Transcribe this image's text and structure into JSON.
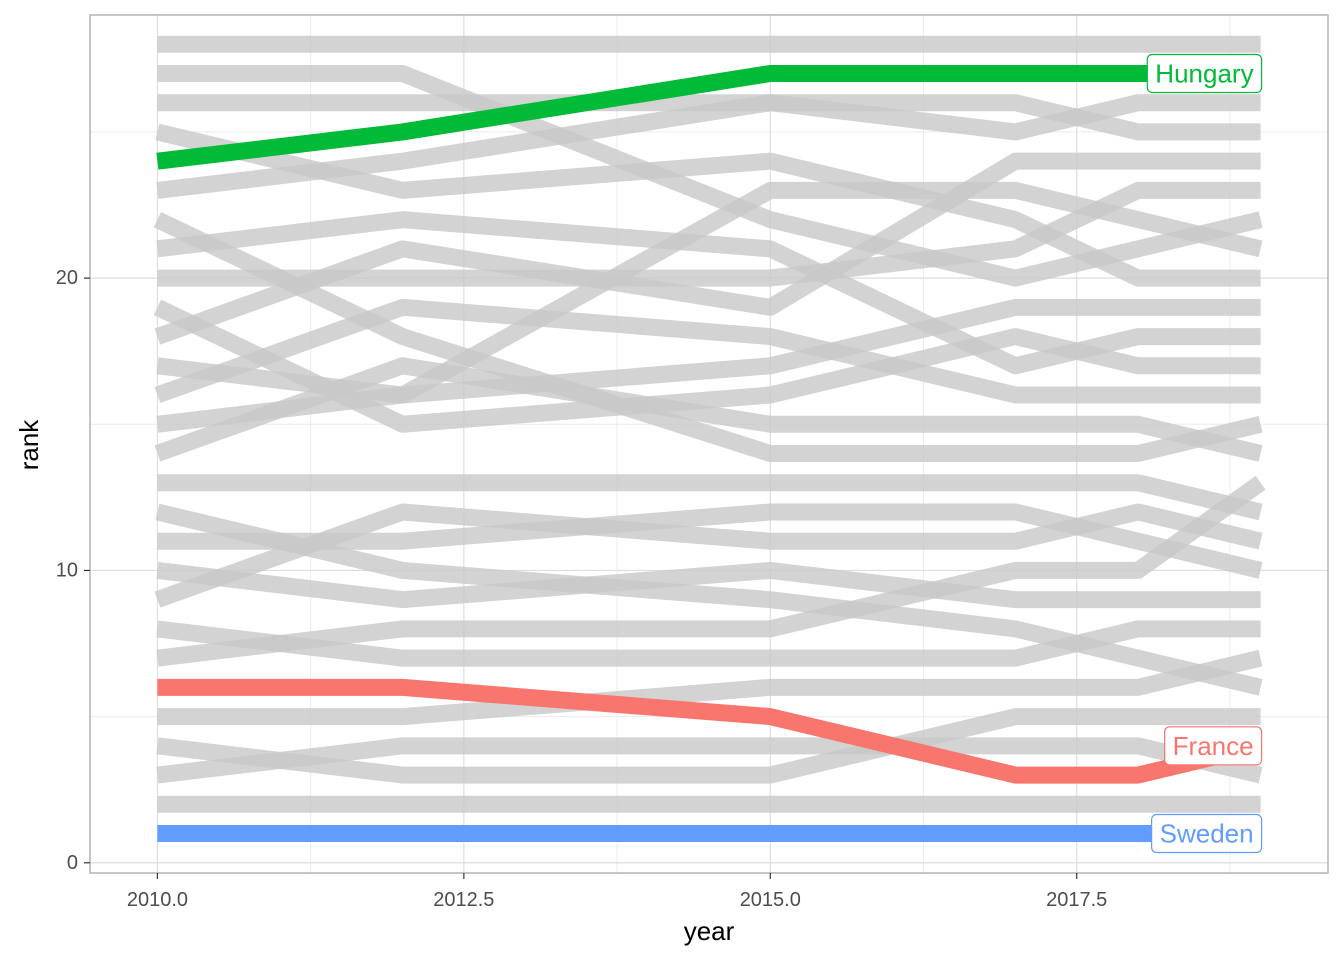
{
  "chart_data": {
    "type": "line",
    "xlabel": "year",
    "ylabel": "rank",
    "xlim": [
      2009.45,
      2019.55
    ],
    "ylim": [
      -0.35,
      29.0
    ],
    "x_ticks": [
      2010,
      2012.5,
      2015,
      2017.5
    ],
    "x_tick_labels": [
      "2010.0",
      "2012.5",
      "2015.0",
      "2017.5"
    ],
    "y_ticks": [
      0,
      10,
      20
    ],
    "y_tick_labels": [
      "0",
      "10",
      "20"
    ],
    "grid": true,
    "x": [
      2010,
      2012,
      2015,
      2017,
      2018,
      2019
    ],
    "background_series_color": "#c8c8c8",
    "background_series": [
      [
        28,
        28,
        28,
        28,
        28,
        28
      ],
      [
        27,
        27,
        22,
        20,
        21,
        22
      ],
      [
        26,
        26,
        26,
        26,
        25,
        25
      ],
      [
        25,
        23,
        24,
        22,
        20,
        20
      ],
      [
        23,
        24,
        26,
        25,
        26,
        26
      ],
      [
        22,
        18,
        14,
        14,
        14,
        15
      ],
      [
        21,
        22,
        21,
        17,
        18,
        18
      ],
      [
        20,
        20,
        20,
        21,
        23,
        23
      ],
      [
        19,
        15,
        16,
        18,
        17,
        17
      ],
      [
        18,
        21,
        19,
        24,
        24,
        24
      ],
      [
        17,
        16,
        17,
        19,
        19,
        19
      ],
      [
        16,
        19,
        18,
        16,
        16,
        16
      ],
      [
        15,
        16,
        23,
        23,
        22,
        21
      ],
      [
        14,
        17,
        15,
        15,
        15,
        14
      ],
      [
        13,
        13,
        13,
        13,
        13,
        12
      ],
      [
        12,
        10,
        9,
        8,
        7,
        6
      ],
      [
        11,
        11,
        12,
        12,
        11,
        10
      ],
      [
        10,
        9,
        10,
        9,
        9,
        9
      ],
      [
        9,
        12,
        11,
        11,
        12,
        11
      ],
      [
        8,
        7,
        7,
        7,
        8,
        8
      ],
      [
        7,
        8,
        8,
        10,
        10,
        13
      ],
      [
        5,
        5,
        6,
        6,
        6,
        7
      ],
      [
        4,
        3,
        3,
        5,
        5,
        5
      ],
      [
        3,
        4,
        4,
        4,
        4,
        3
      ],
      [
        2,
        2,
        2,
        2,
        2,
        2
      ]
    ],
    "highlight_series": [
      {
        "name": "Hungary",
        "color": "#00ba38",
        "values": [
          24,
          25,
          27,
          27,
          27,
          27
        ]
      },
      {
        "name": "France",
        "color": "#f8766d",
        "values": [
          6,
          6,
          5,
          3,
          3,
          4
        ]
      },
      {
        "name": "Sweden",
        "color": "#619cff",
        "values": [
          1,
          1,
          1,
          1,
          1,
          1
        ]
      }
    ]
  }
}
